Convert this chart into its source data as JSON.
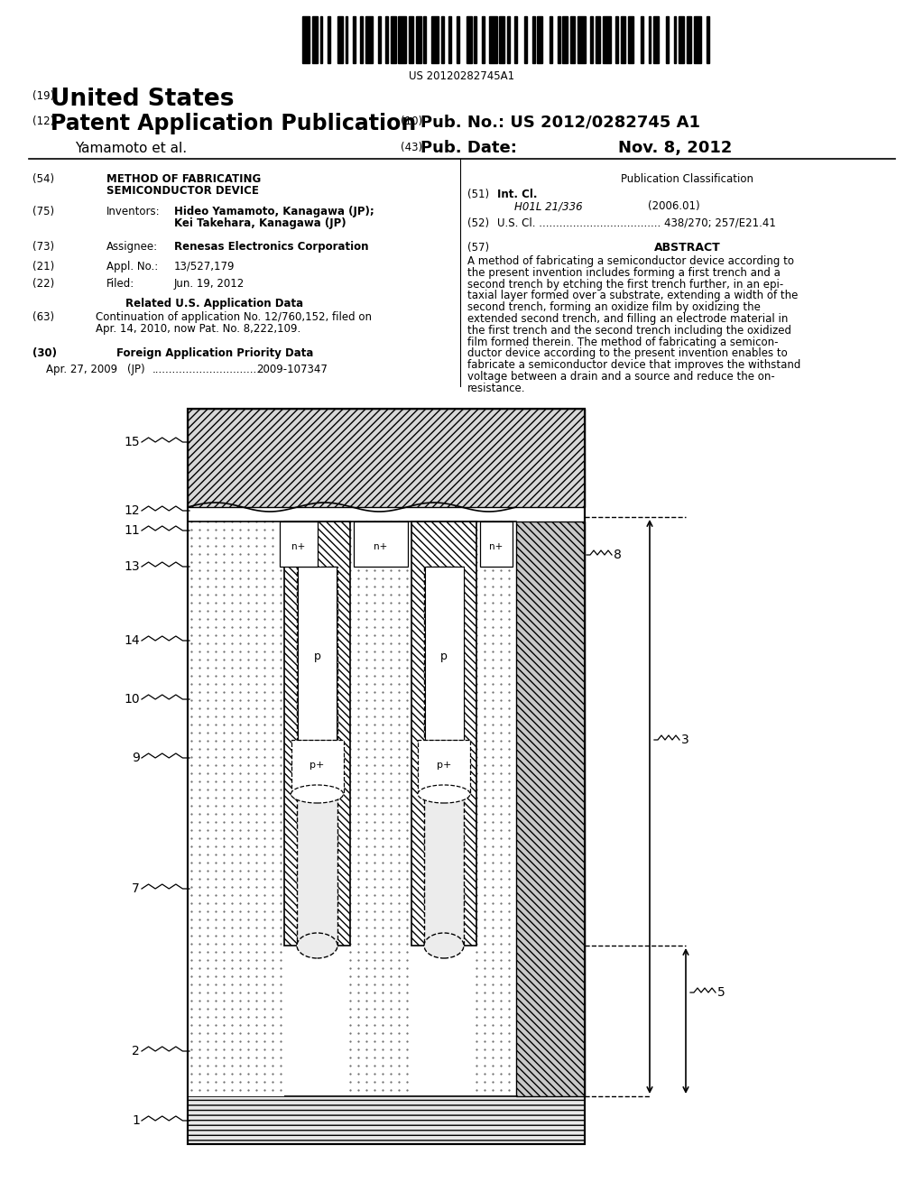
{
  "barcode_text": "US 20120282745A1",
  "country": "United States",
  "label19": "(19)",
  "label12": "(12)",
  "pub_title": "Patent Application Publication",
  "authors": "Yamamoto et al.",
  "label10": "(10)",
  "pub_no_label": "Pub. No.:",
  "pub_no": "US 2012/0282745 A1",
  "label43": "(43)",
  "pub_date_label": "Pub. Date:",
  "pub_date": "Nov. 8, 2012",
  "label54": "(54)",
  "invention_title1": "METHOD OF FABRICATING",
  "invention_title2": "SEMICONDUCTOR DEVICE",
  "label75": "(75)",
  "inventors_label": "Inventors:",
  "inventor1": "Hideo Yamamoto, Kanagawa (JP);",
  "inventor2": "Kei Takehara, Kanagawa (JP)",
  "label73": "(73)",
  "assignee_label": "Assignee:",
  "assignee": "Renesas Electronics Corporation",
  "label21": "(21)",
  "appl_label": "Appl. No.:",
  "appl_no": "13/527,179",
  "label22": "(22)",
  "filed_label": "Filed:",
  "filed_date": "Jun. 19, 2012",
  "related_data_title": "Related U.S. Application Data",
  "label63": "(63)",
  "continuation_line1": "Continuation of application No. 12/760,152, filed on",
  "continuation_line2": "Apr. 14, 2010, now Pat. No. 8,222,109.",
  "label30": "(30)",
  "foreign_title": "Foreign Application Priority Data",
  "foreign_date": "Apr. 27, 2009",
  "foreign_country": "(JP)",
  "foreign_dots": "................................",
  "foreign_no": "2009-107347",
  "pub_class_title": "Publication Classification",
  "label51": "(51)",
  "int_cl_label": "Int. Cl.",
  "int_cl_code": "H01L 21/336",
  "int_cl_year": "(2006.01)",
  "label52": "(52)",
  "us_cl_label": "U.S. Cl.",
  "us_cl_dots": "....................................",
  "us_cl_nos": "438/270; 257/E21.41",
  "label57": "(57)",
  "abstract_title": "ABSTRACT",
  "abstract_lines": [
    "A method of fabricating a semiconductor device according to",
    "the present invention includes forming a first trench and a",
    "second trench by etching the first trench further, in an epi-",
    "taxial layer formed over a substrate, extending a width of the",
    "second trench, forming an oxidize film by oxidizing the",
    "extended second trench, and filling an electrode material in",
    "the first trench and the second trench including the oxidized",
    "film formed therein. The method of fabricating a semicon-",
    "ductor device according to the present invention enables to",
    "fabricate a semiconductor device that improves the withstand",
    "voltage between a drain and a source and reduce the on-",
    "resistance."
  ],
  "bg_color": "#ffffff"
}
